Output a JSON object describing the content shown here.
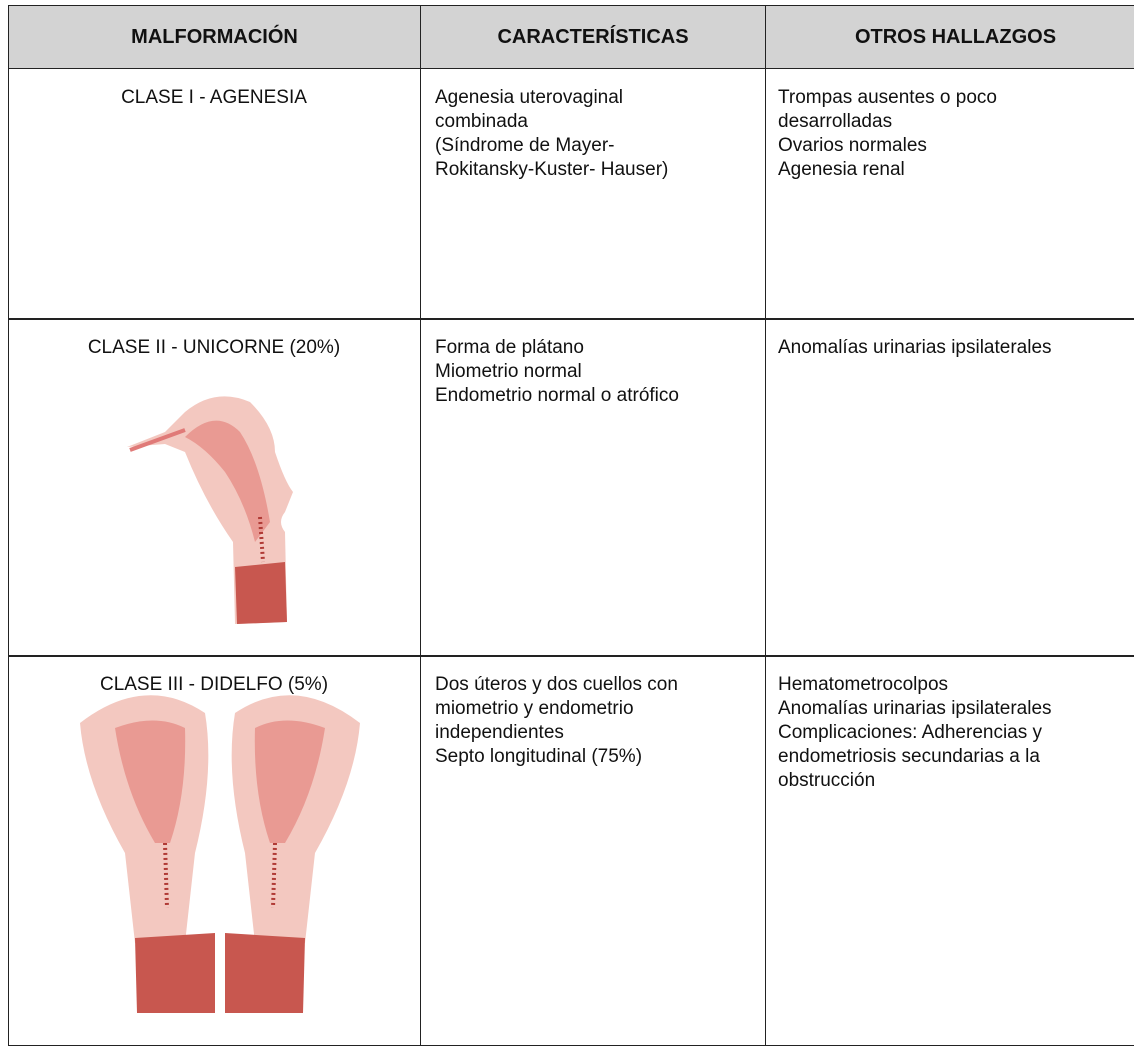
{
  "table": {
    "header": [
      "MALFORMACIÓN",
      "CARACTERÍSTICAS",
      "OTROS HALLAZGOS"
    ],
    "rows": [
      {
        "malformacion": "CLASE I - AGENESIA",
        "caracteristicas": [
          "Agenesia uterovaginal",
          "combinada",
          "(Síndrome de Mayer-",
          "Rokitansky-Kuster- Hauser)"
        ],
        "otros": [
          "Trompas ausentes o poco",
          "desarrolladas",
          "Ovarios normales",
          "Agenesia renal"
        ]
      },
      {
        "malformacion": "CLASE II - UNICORNE (20%)",
        "caracteristicas": [
          "Forma de plátano",
          "Miometrio normal",
          "Endometrio normal o atrófico"
        ],
        "otros": [
          "Anomalías urinarias ipsilaterales"
        ]
      },
      {
        "malformacion": "CLASE III - DIDELFO (5%)",
        "caracteristicas": [
          "Dos úteros y dos cuellos con",
          "miometrio y endometrio",
          "independientes",
          "Septo longitudinal (75%)"
        ],
        "otros": [
          "Hematometrocolpos",
          "Anomalías urinarias ipsilaterales",
          "Complicaciones: Adherencias y",
          "endometriosis secundarias a la",
          "obstrucción"
        ]
      }
    ]
  }
}
